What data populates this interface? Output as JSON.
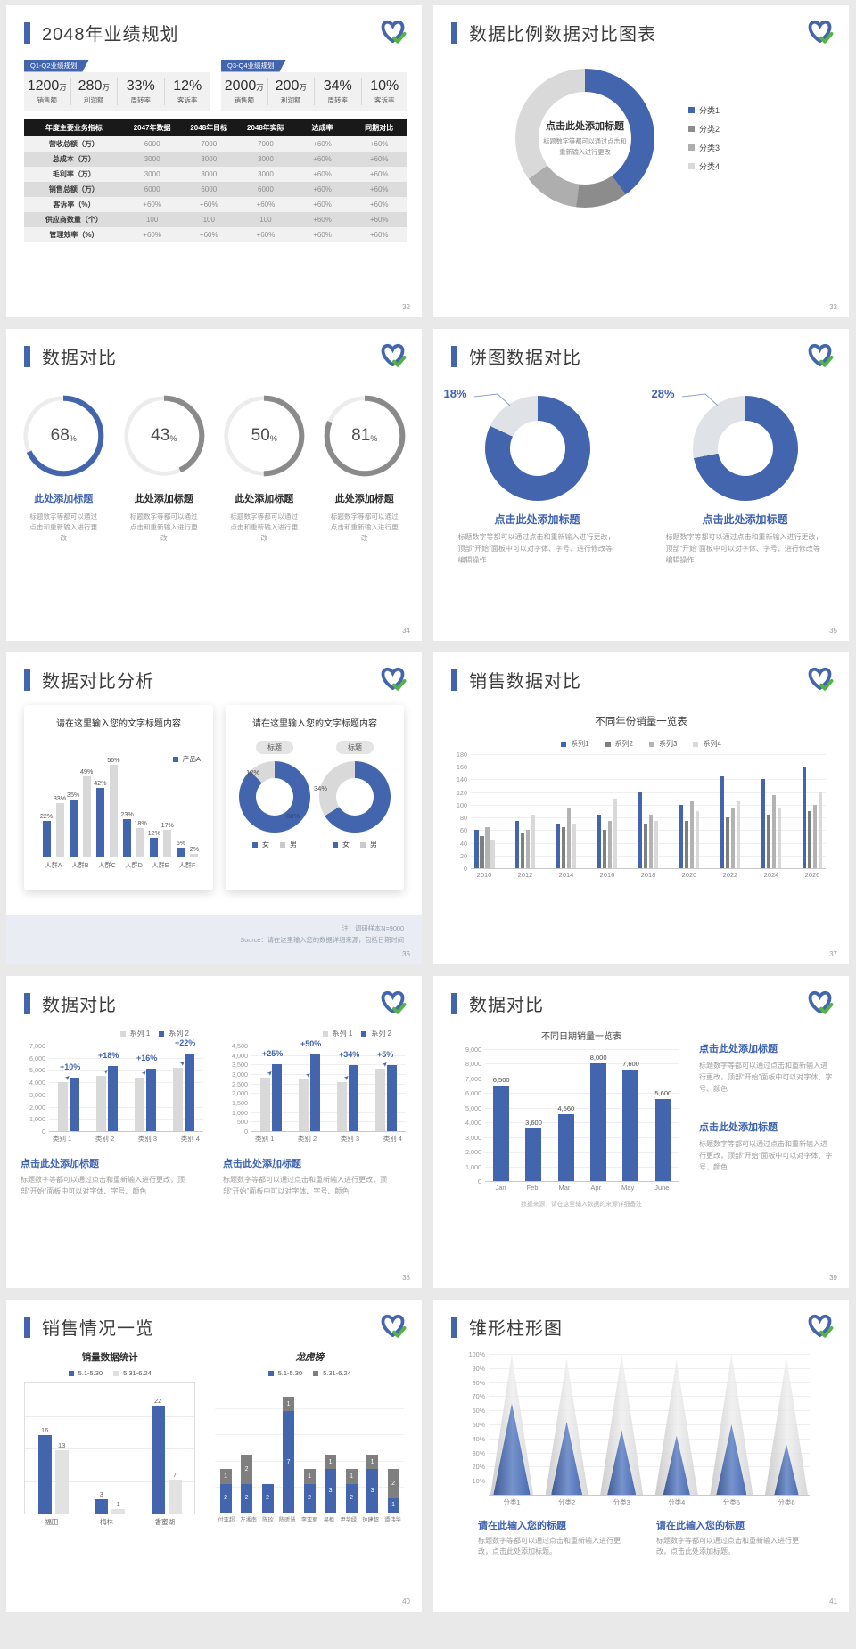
{
  "colors": {
    "blue": "#4365ae",
    "blue_text": "#3f63b0",
    "green": "#54b345",
    "gray_dark": "#7f7f7f",
    "gray_mid": "#aeaeae",
    "gray_light": "#d9d9d9"
  },
  "slides": [
    {
      "key": "s32",
      "page": "32",
      "title": "2048年业绩规划",
      "kpi_groups": [
        {
          "tag": "Q1-Q2业绩规划",
          "items": [
            {
              "value": "1200",
              "unit": "万",
              "label": "销售额"
            },
            {
              "value": "280",
              "unit": "万",
              "label": "利润额"
            },
            {
              "value": "33%",
              "unit": "",
              "label": "周转率"
            },
            {
              "value": "12%",
              "unit": "",
              "label": "客诉率"
            }
          ]
        },
        {
          "tag": "Q3-Q4业绩规划",
          "items": [
            {
              "value": "2000",
              "unit": "万",
              "label": "销售额"
            },
            {
              "value": "200",
              "unit": "万",
              "label": "利润额"
            },
            {
              "value": "34%",
              "unit": "",
              "label": "周转率"
            },
            {
              "value": "10%",
              "unit": "",
              "label": "客诉率"
            }
          ]
        }
      ],
      "table": {
        "headers": [
          "年度主要业务指标",
          "2047年数据",
          "2048年目标",
          "2048年实际",
          "达成率",
          "同期对比"
        ],
        "rows": [
          [
            "营收总额（万）",
            "6000",
            "7000",
            "7000",
            "+60%",
            "+60%"
          ],
          [
            "总成本（万）",
            "3000",
            "3000",
            "3000",
            "+60%",
            "+60%"
          ],
          [
            "毛利率（万）",
            "3000",
            "3000",
            "3000",
            "+60%",
            "+60%"
          ],
          [
            "销售总额（万）",
            "6000",
            "6000",
            "6000",
            "+60%",
            "+60%"
          ],
          [
            "客诉率（%）",
            "+60%",
            "+60%",
            "+60%",
            "+60%",
            "+60%"
          ],
          [
            "供应商数量（个）",
            "100",
            "100",
            "100",
            "+60%",
            "+60%"
          ],
          [
            "管理效率（%）",
            "+60%",
            "+60%",
            "+60%",
            "+60%",
            "+60%"
          ]
        ]
      }
    },
    {
      "key": "s33",
      "page": "33",
      "title": "数据比例数据对比图表",
      "center_title": "点击此处添加标题",
      "center_desc": "标题数字等都可以通过点击和重新输入进行更改",
      "chart": {
        "type": "pie",
        "legend": [
          "分类1",
          "分类2",
          "分类3",
          "分类4"
        ],
        "values": [
          40,
          12,
          13,
          35
        ],
        "colors": [
          "#4365ae",
          "#8c8c8c",
          "#aeaeae",
          "#d9d9d9"
        ]
      }
    },
    {
      "key": "s34",
      "page": "34",
      "title": "数据对比",
      "item_title": "此处添加标题",
      "item_desc": "标题数字等都可以通过点击和重新输入进行更改",
      "rings": [
        {
          "pct": 68,
          "color": "#4365ae",
          "title_color": "#3f63b0"
        },
        {
          "pct": 43,
          "color": "#8a8a8a",
          "title_color": "#2e2e2e"
        },
        {
          "pct": 50,
          "color": "#8a8a8a",
          "title_color": "#2e2e2e"
        },
        {
          "pct": 81,
          "color": "#8a8a8a",
          "title_color": "#2e2e2e"
        }
      ]
    },
    {
      "key": "s35",
      "page": "35",
      "title": "饼图数据对比",
      "item_title": "点击此处添加标题",
      "item_desc": "标题数字等都可以通过点击和重新输入进行更改，顶部“开始”面板中可以对字体、字号、进行修改等编辑操作",
      "donuts": [
        {
          "label": "18%",
          "gray_pct": 18
        },
        {
          "label": "28%",
          "gray_pct": 28
        }
      ]
    },
    {
      "key": "s36",
      "page": "36",
      "title": "数据对比分析",
      "card1": {
        "title": "请在这里输入您的文字标题内容",
        "legend": "产品A",
        "categories": [
          "人群A",
          "人群B",
          "人群C",
          "人群D",
          "人群E",
          "人群F"
        ],
        "blue": [
          22,
          35,
          42,
          23,
          12,
          6
        ],
        "gray": [
          33,
          49,
          56,
          18,
          17,
          2
        ]
      },
      "card2": {
        "title": "请在这里输入您的文字标题内容",
        "tag": "标题",
        "legend": [
          "女",
          "男"
        ],
        "donuts": [
          {
            "gray_pct": 12,
            "gray_label": "12%",
            "blue_label": "88%"
          },
          {
            "gray_pct": 34,
            "gray_label": "34%",
            "blue_label": ""
          }
        ]
      },
      "notes": [
        "注：调研样本N=9000",
        "Source：请在这里输入您的数据详细来源，包括日期时间"
      ]
    },
    {
      "key": "s37",
      "page": "37",
      "title": "销售数据对比",
      "chart": {
        "type": "bar",
        "title": "不同年份销量一览表",
        "legend": [
          "系列1",
          "系列2",
          "系列3",
          "系列4"
        ],
        "series_colors": [
          "#4365ae",
          "#7f7f7f",
          "#b3b3b3",
          "#d9d9d9"
        ],
        "categories": [
          "2010",
          "2012",
          "2014",
          "2016",
          "2018",
          "2020",
          "2022",
          "2024",
          "2026"
        ],
        "series": [
          {
            "name": "系列1",
            "values": [
              60,
              75,
              70,
              85,
              120,
              100,
              145,
              140,
              160
            ]
          },
          {
            "name": "系列2",
            "values": [
              50,
              55,
              65,
              60,
              70,
              75,
              80,
              85,
              90
            ]
          },
          {
            "name": "系列3",
            "values": [
              65,
              60,
              95,
              75,
              85,
              105,
              95,
              115,
              100
            ]
          },
          {
            "name": "系列4",
            "values": [
              45,
              85,
              70,
              110,
              75,
              90,
              105,
              95,
              120
            ]
          }
        ],
        "yticks": [
          "180",
          "160",
          "140",
          "120",
          "100",
          "80",
          "60",
          "40",
          "20",
          "0"
        ],
        "ylim": [
          0,
          180
        ]
      }
    },
    {
      "key": "s38",
      "page": "38",
      "title": "数据对比",
      "block_title": "点击此处添加标题",
      "block_desc": "标题数字等都可以通过点击和重新输入进行更改，顶部“开始”面板中可以对字体、字号、颜色",
      "charts": [
        {
          "legend": [
            "系列 1",
            "系列 2"
          ],
          "yticks": [
            "7,000",
            "6,000",
            "5,000",
            "4,000",
            "3,000",
            "2,000",
            "1,000",
            "0"
          ],
          "ymax": 7000,
          "categories": [
            "类别 1",
            "类别 2",
            "类别 3",
            "类别 4"
          ],
          "gray": [
            4000,
            4500,
            4400,
            5200
          ],
          "blue": [
            4400,
            5310,
            5100,
            6340
          ],
          "pct": [
            "+10%",
            "+18%",
            "+16%",
            "+22%"
          ]
        },
        {
          "legend": [
            "系列 1",
            "系列 2"
          ],
          "yticks": [
            "4,500",
            "4,000",
            "3,500",
            "3,000",
            "2,500",
            "2,000",
            "1,500",
            "1,000",
            "500",
            "0"
          ],
          "ymax": 4500,
          "categories": [
            "类别 1",
            "类别 2",
            "类别 3",
            "类别 4"
          ],
          "gray": [
            2800,
            2700,
            2600,
            3300
          ],
          "blue": [
            3500,
            4050,
            3480,
            3470
          ],
          "pct": [
            "+25%",
            "+50%",
            "+34%",
            "+5%"
          ]
        }
      ]
    },
    {
      "key": "s39",
      "page": "39",
      "title": "数据对比",
      "chart": {
        "type": "bar",
        "title": "不同日期销量一览表",
        "categories": [
          "Jan",
          "Feb",
          "Mar",
          "Apr",
          "May",
          "June"
        ],
        "values": [
          6500,
          3600,
          4560,
          8000,
          7600,
          5600
        ],
        "labels": [
          "6,500",
          "3,600",
          "4,560",
          "8,000",
          "7,600",
          "5,600"
        ],
        "yticks": [
          "9,000",
          "8,000",
          "7,000",
          "6,000",
          "5,000",
          "4,000",
          "3,000",
          "2,000",
          "1,000",
          "0"
        ],
        "ylim": [
          0,
          9000
        ]
      },
      "source": "数据来源：请在这里输入数据的来源详细备注",
      "blocks": [
        {
          "title": "点击此处添加标题",
          "desc": "标题数字等都可以通过点击和重新输入进行更改，顶部“开始”面板中可以对字体、字号、颜色"
        },
        {
          "title": "点击此处添加标题",
          "desc": "标题数字等都可以通过点击和重新输入进行更改，顶部“开始”面板中可以对字体、字号、颜色"
        }
      ]
    },
    {
      "key": "s40",
      "page": "40",
      "title": "销售情况一览",
      "chartA": {
        "title": "销量数据统计",
        "legend": [
          "5.1-5.30",
          "5.31-6.24"
        ],
        "categories": [
          "福田",
          "梅林",
          "香蜜湖"
        ],
        "blue": [
          16,
          3,
          22
        ],
        "gray": [
          13,
          1,
          7
        ],
        "ymax": 24
      },
      "chartB": {
        "title": "龙虎榜",
        "legend": [
          "5.1-5.30",
          "5.31-6.24"
        ],
        "names": [
          "付亚超",
          "左湘南",
          "陈珍",
          "陈昕慧",
          "李亚丽",
          "易柜",
          "尹华绿",
          "钟建韶",
          "谭伟华"
        ],
        "blue": [
          2,
          2,
          2,
          7,
          2,
          3,
          2,
          3,
          1
        ],
        "gray": [
          1,
          2,
          0,
          1,
          1,
          1,
          1,
          1,
          2
        ],
        "ymax": 9
      }
    },
    {
      "key": "s41",
      "page": "41",
      "title": "锥形柱形图",
      "chart": {
        "type": "cone",
        "categories": [
          "分类1",
          "分类2",
          "分类3",
          "分类4",
          "分类5",
          "分类6"
        ],
        "gray": [
          100,
          97,
          100,
          96,
          100,
          98
        ],
        "blue": [
          65,
          52,
          46,
          42,
          50,
          36
        ],
        "yticks": [
          "100%",
          "90%",
          "80%",
          "70%",
          "60%",
          "50%",
          "40%",
          "30%",
          "20%",
          "10%"
        ]
      },
      "blocks": [
        {
          "title": "请在此输入您的标题",
          "desc": "标题数字等都可以通过点击和重新输入进行更改，点击此处添加标题。"
        },
        {
          "title": "请在此输入您的标题",
          "desc": "标题数字等都可以通过点击和重新输入进行更改，点击此处添加标题。"
        }
      ]
    }
  ]
}
